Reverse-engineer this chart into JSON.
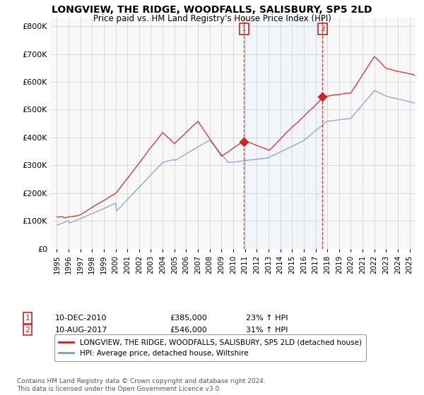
{
  "title": "LONGVIEW, THE RIDGE, WOODFALLS, SALISBURY, SP5 2LD",
  "subtitle": "Price paid vs. HM Land Registry's House Price Index (HPI)",
  "ylabel_ticks": [
    "£0",
    "£100K",
    "£200K",
    "£300K",
    "£400K",
    "£500K",
    "£600K",
    "£700K",
    "£800K"
  ],
  "ytick_values": [
    0,
    100000,
    200000,
    300000,
    400000,
    500000,
    600000,
    700000,
    800000
  ],
  "ylim": [
    0,
    830000
  ],
  "xlim_start": 1994.5,
  "xlim_end": 2025.5,
  "bg_color": "#ffffff",
  "plot_bg_color": "#f8f8f8",
  "red_line_color": "#cc2222",
  "blue_line_color": "#7799cc",
  "vline_color": "#cc2222",
  "shade_color": "#ddeeff",
  "footnote": "Contains HM Land Registry data © Crown copyright and database right 2024.\nThis data is licensed under the Open Government Licence v3.0.",
  "legend_label_red": "LONGVIEW, THE RIDGE, WOODFALLS, SALISBURY, SP5 2LD (detached house)",
  "legend_label_blue": "HPI: Average price, detached house, Wiltshire",
  "sale1_label": "1",
  "sale1_date": "10-DEC-2010",
  "sale1_price": "£385,000",
  "sale1_hpi": "23% ↑ HPI",
  "sale1_x": 2010.917,
  "sale1_y": 385000,
  "sale2_label": "2",
  "sale2_date": "10-AUG-2017",
  "sale2_price": "£546,000",
  "sale2_hpi": "31% ↑ HPI",
  "sale2_x": 2017.583,
  "sale2_y": 546000
}
